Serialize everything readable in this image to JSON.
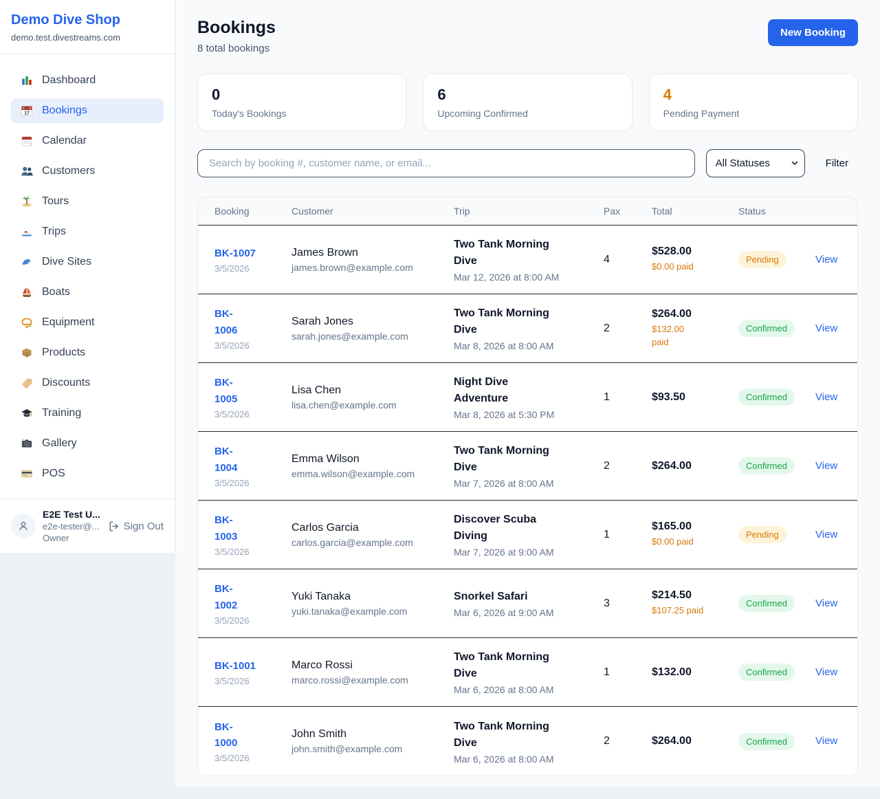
{
  "colors": {
    "accent": "#2563eb",
    "pending": "#d97706",
    "confirmed": "#16a34a"
  },
  "sidebar": {
    "brand": "Demo Dive Shop",
    "domain": "demo.test.divestreams.com",
    "items": [
      {
        "icon": "dashboard",
        "label": "Dashboard",
        "active": false
      },
      {
        "icon": "bookings",
        "label": "Bookings",
        "active": true
      },
      {
        "icon": "calendar",
        "label": "Calendar",
        "active": false
      },
      {
        "icon": "customers",
        "label": "Customers",
        "active": false
      },
      {
        "icon": "tours",
        "label": "Tours",
        "active": false
      },
      {
        "icon": "trips",
        "label": "Trips",
        "active": false
      },
      {
        "icon": "dive-sites",
        "label": "Dive Sites",
        "active": false
      },
      {
        "icon": "boats",
        "label": "Boats",
        "active": false
      },
      {
        "icon": "equipment",
        "label": "Equipment",
        "active": false
      },
      {
        "icon": "products",
        "label": "Products",
        "active": false
      },
      {
        "icon": "discounts",
        "label": "Discounts",
        "active": false
      },
      {
        "icon": "training",
        "label": "Training",
        "active": false
      },
      {
        "icon": "gallery",
        "label": "Gallery",
        "active": false
      },
      {
        "icon": "pos",
        "label": "POS",
        "active": false
      }
    ],
    "user": {
      "name": "E2E Test U...",
      "email": "e2e-tester@...",
      "role": "Owner",
      "sign_out": "Sign Out"
    }
  },
  "header": {
    "title": "Bookings",
    "subtitle": "8 total bookings",
    "new_booking": "New Booking"
  },
  "stats": [
    {
      "value": "0",
      "label": "Today's Bookings",
      "accent": false
    },
    {
      "value": "6",
      "label": "Upcoming Confirmed",
      "accent": false
    },
    {
      "value": "4",
      "label": "Pending Payment",
      "accent": true
    }
  ],
  "filters": {
    "search_placeholder": "Search by booking #, customer name, or email...",
    "status_select": "All Statuses",
    "filter_label": "Filter"
  },
  "table": {
    "columns": [
      "Booking",
      "Customer",
      "Trip",
      "Pax",
      "Total",
      "Status",
      ""
    ],
    "rows": [
      {
        "id": "BK-1007",
        "id_two_lines": false,
        "date": "3/5/2026",
        "customer": "James Brown",
        "email": "james.brown@example.com",
        "trip": "Two Tank Morning Dive",
        "trip_datetime": "Mar 12, 2026 at 8:00 AM",
        "pax": "4",
        "total": "$528.00",
        "paid": "$0.00 paid",
        "paid_two_lines": false,
        "status": "Pending",
        "action": "View"
      },
      {
        "id": "BK-1006",
        "id_two_lines": true,
        "date": "3/5/2026",
        "customer": "Sarah Jones",
        "email": "sarah.jones@example.com",
        "trip": "Two Tank Morning Dive",
        "trip_datetime": "Mar 8, 2026 at 8:00 AM",
        "pax": "2",
        "total": "$264.00",
        "paid": "$132.00 paid",
        "paid_two_lines": true,
        "status": "Confirmed",
        "action": "View"
      },
      {
        "id": "BK-1005",
        "id_two_lines": true,
        "date": "3/5/2026",
        "customer": "Lisa Chen",
        "email": "lisa.chen@example.com",
        "trip": "Night Dive Adventure",
        "trip_datetime": "Mar 8, 2026 at 5:30 PM",
        "pax": "1",
        "total": "$93.50",
        "paid": null,
        "paid_two_lines": false,
        "status": "Confirmed",
        "action": "View"
      },
      {
        "id": "BK-1004",
        "id_two_lines": true,
        "date": "3/5/2026",
        "customer": "Emma Wilson",
        "email": "emma.wilson@example.com",
        "trip": "Two Tank Morning Dive",
        "trip_datetime": "Mar 7, 2026 at 8:00 AM",
        "pax": "2",
        "total": "$264.00",
        "paid": null,
        "paid_two_lines": false,
        "status": "Confirmed",
        "action": "View"
      },
      {
        "id": "BK-1003",
        "id_two_lines": true,
        "date": "3/5/2026",
        "customer": "Carlos Garcia",
        "email": "carlos.garcia@example.com",
        "trip": "Discover Scuba Diving",
        "trip_datetime": "Mar 7, 2026 at 9:00 AM",
        "pax": "1",
        "total": "$165.00",
        "paid": "$0.00 paid",
        "paid_two_lines": false,
        "status": "Pending",
        "action": "View"
      },
      {
        "id": "BK-1002",
        "id_two_lines": true,
        "date": "3/5/2026",
        "customer": "Yuki Tanaka",
        "email": "yuki.tanaka@example.com",
        "trip": "Snorkel Safari",
        "trip_datetime": "Mar 6, 2026 at 9:00 AM",
        "pax": "3",
        "total": "$214.50",
        "paid": "$107.25 paid",
        "paid_two_lines": false,
        "status": "Confirmed",
        "action": "View"
      },
      {
        "id": "BK-1001",
        "id_two_lines": false,
        "date": "3/5/2026",
        "customer": "Marco Rossi",
        "email": "marco.rossi@example.com",
        "trip": "Two Tank Morning Dive",
        "trip_datetime": "Mar 6, 2026 at 8:00 AM",
        "pax": "1",
        "total": "$132.00",
        "paid": null,
        "paid_two_lines": false,
        "status": "Confirmed",
        "action": "View"
      },
      {
        "id": "BK-1000",
        "id_two_lines": true,
        "date": "3/5/2026",
        "customer": "John Smith",
        "email": "john.smith@example.com",
        "trip": "Two Tank Morning Dive",
        "trip_datetime": "Mar 6, 2026 at 8:00 AM",
        "pax": "2",
        "total": "$264.00",
        "paid": null,
        "paid_two_lines": false,
        "status": "Confirmed",
        "action": "View"
      }
    ]
  }
}
